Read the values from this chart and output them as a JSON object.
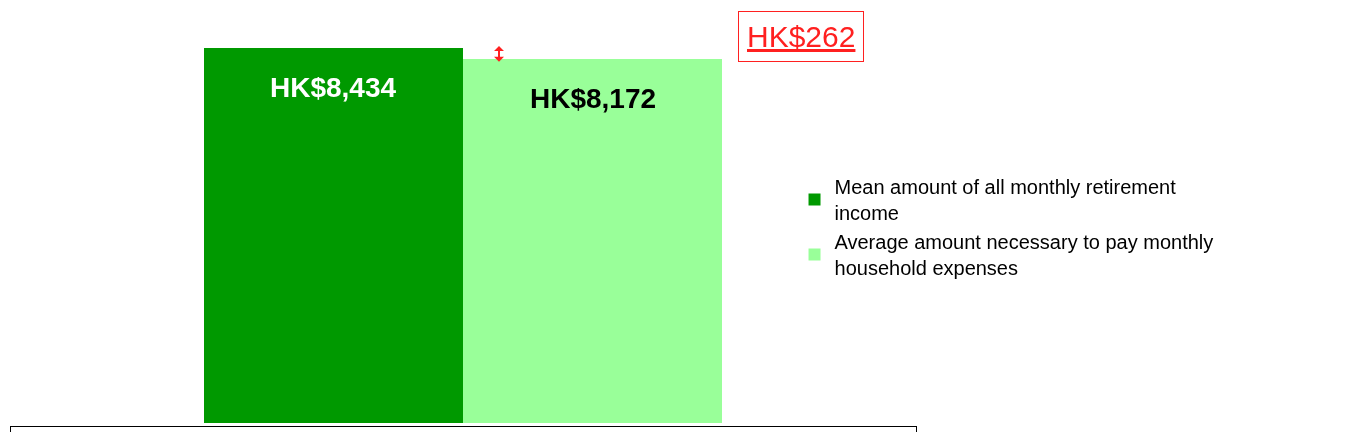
{
  "chart_data": {
    "type": "bar",
    "categories": [
      null
    ],
    "series": [
      {
        "name": "Mean amount of all monthly retirement income",
        "color": "#009900",
        "values": [
          8434
        ],
        "value_labels": [
          "HK$8,434"
        ]
      },
      {
        "name": "Average amount necessary to pay monthly household expenses",
        "color": "#99ff99",
        "values": [
          8172
        ],
        "value_labels": [
          "HK$8,172"
        ]
      }
    ],
    "annotations": [
      "HK$262"
    ],
    "legend": "right"
  }
}
